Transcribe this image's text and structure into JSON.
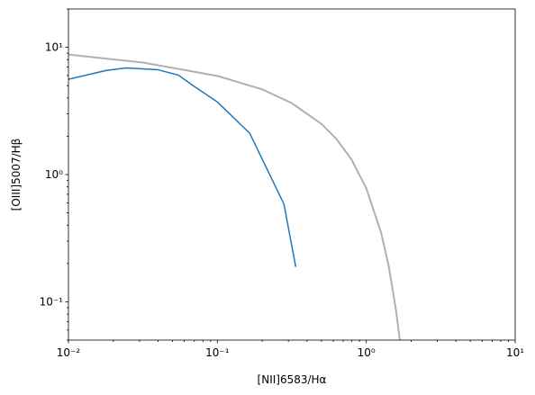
{
  "chart_data": {
    "type": "line",
    "xlabel": "[NII]6583/Hα",
    "ylabel": "[OIII]5007/Hβ",
    "xscale": "log",
    "yscale": "log",
    "xlim": [
      0.01,
      10
    ],
    "ylim": [
      0.05,
      20
    ],
    "xticks": [
      {
        "value": 0.01,
        "label": "10⁻²"
      },
      {
        "value": 0.1,
        "label": "10⁻¹"
      },
      {
        "value": 1,
        "label": "10⁰"
      },
      {
        "value": 10,
        "label": "10¹"
      }
    ],
    "yticks": [
      {
        "value": 0.1,
        "label": "10⁻¹"
      },
      {
        "value": 1,
        "label": "10⁰"
      },
      {
        "value": 10,
        "label": "10¹"
      }
    ],
    "xminorticks": [
      0.02,
      0.03,
      0.04,
      0.05,
      0.06,
      0.07,
      0.08,
      0.09,
      0.2,
      0.3,
      0.4,
      0.5,
      0.6,
      0.7,
      0.8,
      0.9,
      2,
      3,
      4,
      5,
      6,
      7,
      8,
      9
    ],
    "yminorticks": [
      0.05,
      0.06,
      0.07,
      0.08,
      0.09,
      0.2,
      0.3,
      0.4,
      0.5,
      0.6,
      0.7,
      0.8,
      0.9,
      2,
      3,
      4,
      5,
      6,
      7,
      8,
      9,
      20
    ],
    "series": [
      {
        "color": "#1f77b4",
        "x": [
          0.01,
          0.0177,
          0.0244,
          0.0397,
          0.0546,
          0.069,
          0.1,
          0.165,
          0.28,
          0.336
        ],
        "values": [
          5.6,
          6.56,
          6.89,
          6.67,
          6.05,
          4.98,
          3.72,
          2.11,
          0.586,
          0.188
        ]
      },
      {
        "color": "#b0b0b0",
        "x": [
          0.01,
          0.0316,
          0.1,
          0.2,
          0.316,
          0.5,
          0.631,
          0.794,
          1,
          1.259,
          1.413,
          1.585,
          1.679
        ],
        "values": [
          8.77,
          7.59,
          5.96,
          4.67,
          3.64,
          2.5,
          1.9,
          1.32,
          0.78,
          0.348,
          0.192,
          0.0853,
          0.0501
        ]
      }
    ]
  }
}
